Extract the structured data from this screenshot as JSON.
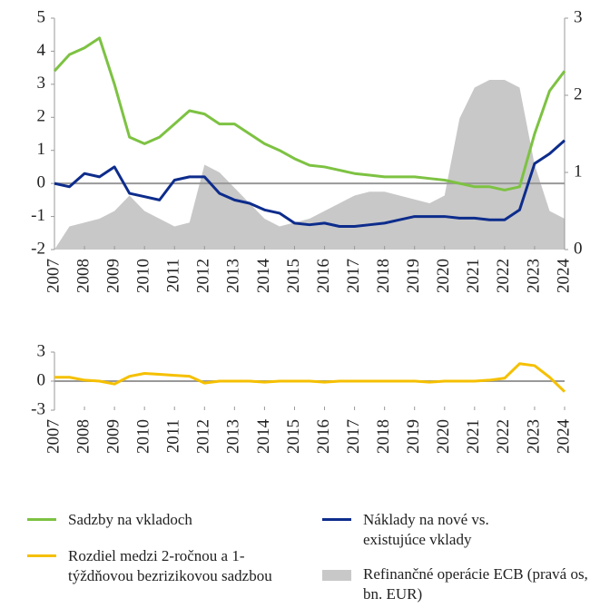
{
  "chart_data": [
    {
      "type": "line",
      "x": [
        2007,
        2007.5,
        2008,
        2008.5,
        2009,
        2009.5,
        2010,
        2010.5,
        2011,
        2011.5,
        2012,
        2012.5,
        2013,
        2013.5,
        2014,
        2014.5,
        2015,
        2015.5,
        2016,
        2016.5,
        2017,
        2017.5,
        2018,
        2018.5,
        2019,
        2019.5,
        2020,
        2020.5,
        2021,
        2021.5,
        2022,
        2022.5,
        2023,
        2023.5,
        2024
      ],
      "xlim": [
        2007,
        2024
      ],
      "xticks": [
        2007,
        2008,
        2009,
        2010,
        2011,
        2012,
        2013,
        2014,
        2015,
        2016,
        2017,
        2018,
        2019,
        2020,
        2021,
        2022,
        2023,
        2024
      ],
      "ylim": [
        -2,
        5
      ],
      "yticks": [
        -2,
        -1,
        0,
        1,
        2,
        3,
        4,
        5
      ],
      "y2lim": [
        0,
        3
      ],
      "y2ticks": [
        0,
        1,
        2,
        3
      ],
      "series": [
        {
          "name": "Sadzby na vkladoch",
          "color": "#7dc242",
          "values": [
            3.4,
            3.9,
            4.1,
            4.4,
            3.0,
            1.4,
            1.2,
            1.4,
            1.8,
            2.2,
            2.1,
            1.8,
            1.8,
            1.5,
            1.2,
            1.0,
            0.75,
            0.55,
            0.5,
            0.4,
            0.3,
            0.25,
            0.2,
            0.2,
            0.2,
            0.15,
            0.1,
            0.0,
            -0.1,
            -0.1,
            -0.2,
            -0.1,
            1.5,
            2.8,
            3.4
          ]
        },
        {
          "name": "Náklady na nové vs. existujúce vklady",
          "color": "#0d2c8c",
          "values": [
            0,
            -0.1,
            0.3,
            0.2,
            0.5,
            -0.3,
            -0.4,
            -0.5,
            0.1,
            0.2,
            0.2,
            -0.3,
            -0.5,
            -0.6,
            -0.8,
            -0.9,
            -1.2,
            -1.25,
            -1.2,
            -1.3,
            -1.3,
            -1.25,
            -1.2,
            -1.1,
            -1.0,
            -1.0,
            -1.0,
            -1.05,
            -1.05,
            -1.1,
            -1.1,
            -0.8,
            0.6,
            0.9,
            1.3
          ]
        },
        {
          "name": "Refinančné operácie ECB (pravá os, bn. EUR)",
          "color": "#c8c8c8",
          "type": "area",
          "axis": "y2",
          "values": [
            0,
            0.3,
            0.35,
            0.4,
            0.5,
            0.7,
            0.5,
            0.4,
            0.3,
            0.35,
            1.1,
            1.0,
            0.8,
            0.6,
            0.4,
            0.3,
            0.35,
            0.4,
            0.5,
            0.6,
            0.7,
            0.75,
            0.75,
            0.7,
            0.65,
            0.6,
            0.7,
            1.7,
            2.1,
            2.2,
            2.2,
            2.1,
            1.1,
            0.5,
            0.4
          ]
        }
      ]
    },
    {
      "type": "line",
      "x": [
        2007,
        2007.5,
        2008,
        2008.5,
        2009,
        2009.5,
        2010,
        2010.5,
        2011,
        2011.5,
        2012,
        2012.5,
        2013,
        2013.5,
        2014,
        2014.5,
        2015,
        2015.5,
        2016,
        2016.5,
        2017,
        2017.5,
        2018,
        2018.5,
        2019,
        2019.5,
        2020,
        2020.5,
        2021,
        2021.5,
        2022,
        2022.5,
        2023,
        2023.5,
        2024
      ],
      "xlim": [
        2007,
        2024
      ],
      "xticks": [
        2007,
        2008,
        2009,
        2010,
        2011,
        2012,
        2013,
        2014,
        2015,
        2016,
        2017,
        2018,
        2019,
        2020,
        2021,
        2022,
        2023,
        2024
      ],
      "ylim": [
        -3,
        3
      ],
      "yticks": [
        -3,
        0,
        3
      ],
      "series": [
        {
          "name": "Rozdiel medzi 2-ročnou a 1-týždňovou bezrizikovou sadzbou",
          "color": "#f5c000",
          "values": [
            0.4,
            0.4,
            0.1,
            0.0,
            -0.3,
            0.5,
            0.8,
            0.7,
            0.6,
            0.5,
            -0.2,
            0.0,
            0.0,
            0.0,
            -0.1,
            0.0,
            0.0,
            0.0,
            -0.1,
            0.0,
            0.0,
            0.0,
            0.0,
            0.0,
            0.0,
            -0.1,
            0.0,
            0.0,
            0.0,
            0.1,
            0.3,
            1.8,
            1.6,
            0.4,
            -1.1
          ]
        }
      ]
    }
  ]
}
